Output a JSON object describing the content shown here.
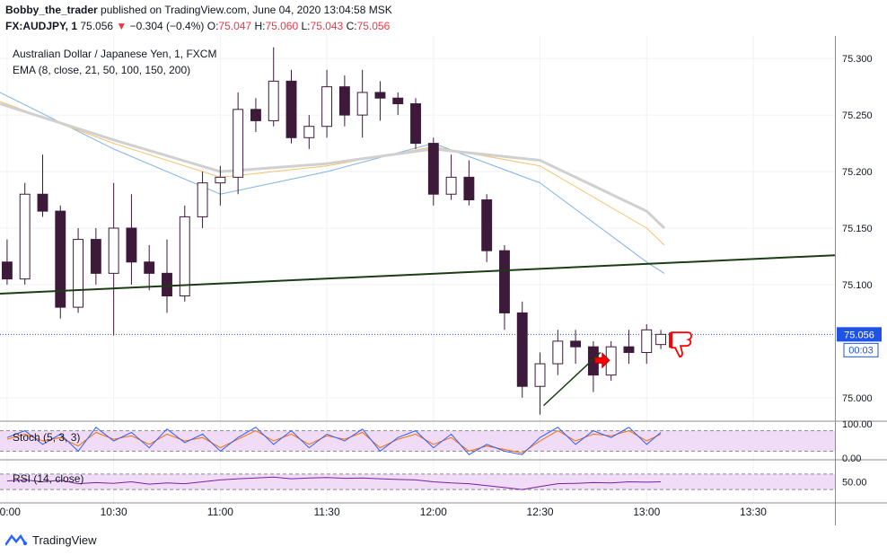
{
  "header": {
    "author": "Bobby_the_trader",
    "published_text": "published on TradingView.com, June 04, 2020 13:04:58 MSK",
    "symbol": "FX:AUDJPY, 1",
    "last": "75.056",
    "change_arrow": "▼",
    "change": "−0.304 (−0.4%)",
    "o_label": "O:",
    "o": "75.047",
    "h_label": "H:",
    "h": "75.060",
    "l_label": "L:",
    "l": "75.043",
    "c_label": "C:",
    "c": "75.056"
  },
  "legend": {
    "title": "Australian Dollar / Japanese Yen, 1, FXCM",
    "ema": "EMA (8, close, 21, 50, 100, 150, 200)",
    "stoch": "Stoch (5, 3, 3)",
    "rsi": "RSI (14, close)"
  },
  "price_axis": {
    "ticks": [
      "75.300",
      "75.250",
      "75.200",
      "75.150",
      "75.100",
      "75.000"
    ],
    "current_price": "75.056",
    "countdown": "00:03"
  },
  "stoch_axis": {
    "ticks": [
      "100.00",
      "0.00"
    ]
  },
  "rsi_axis": {
    "ticks": [
      "50.00"
    ]
  },
  "time_axis": {
    "ticks": [
      "10:00",
      "10:30",
      "11:00",
      "11:30",
      "12:00",
      "12:30",
      "13:00",
      "13:30"
    ]
  },
  "footer": {
    "brand": "TradingView"
  },
  "colors": {
    "up_candle": "#ffffff",
    "down_candle": "#3d1a3a",
    "wick": "#3d1a3a",
    "trendline": "#1b3d14",
    "ema_fast": "#7fb2e5",
    "ema_mid": "#f5c26b",
    "ema_slow": "#d0d0d0",
    "stoch_k": "#2962ff",
    "stoch_d": "#ff6d00",
    "stoch_band": "#f1dcf8",
    "rsi_line": "#7b1fa2",
    "price_label": "#1e53e5",
    "signal_arrow": "#ff0000",
    "thumbs_down": "#ff0000"
  },
  "icons": [
    "tradingview-logo-icon",
    "thumbs-down-icon",
    "arrow-right-icon"
  ],
  "chart_data": {
    "type": "candlestick",
    "symbol": "FX:AUDJPY",
    "timeframe": "1",
    "y_range": [
      74.98,
      75.32
    ],
    "x_range": [
      "09:58",
      "13:53"
    ],
    "candles": [
      {
        "t": "10:00",
        "o": 75.12,
        "h": 75.14,
        "l": 75.1,
        "c": 75.105
      },
      {
        "t": "10:05",
        "o": 75.105,
        "h": 75.19,
        "l": 75.1,
        "c": 75.18
      },
      {
        "t": "10:10",
        "o": 75.18,
        "h": 75.215,
        "l": 75.16,
        "c": 75.165
      },
      {
        "t": "10:15",
        "o": 75.165,
        "h": 75.17,
        "l": 75.07,
        "c": 75.08
      },
      {
        "t": "10:20",
        "o": 75.08,
        "h": 75.15,
        "l": 75.075,
        "c": 75.14
      },
      {
        "t": "10:25",
        "o": 75.14,
        "h": 75.15,
        "l": 75.1,
        "c": 75.11
      },
      {
        "t": "10:30",
        "o": 75.11,
        "h": 75.19,
        "l": 75.055,
        "c": 75.15
      },
      {
        "t": "10:35",
        "o": 75.15,
        "h": 75.18,
        "l": 75.1,
        "c": 75.12
      },
      {
        "t": "10:40",
        "o": 75.12,
        "h": 75.135,
        "l": 75.095,
        "c": 75.11
      },
      {
        "t": "10:45",
        "o": 75.11,
        "h": 75.14,
        "l": 75.075,
        "c": 75.09
      },
      {
        "t": "10:50",
        "o": 75.09,
        "h": 75.17,
        "l": 75.085,
        "c": 75.16
      },
      {
        "t": "10:55",
        "o": 75.16,
        "h": 75.2,
        "l": 75.15,
        "c": 75.19
      },
      {
        "t": "11:00",
        "o": 75.19,
        "h": 75.205,
        "l": 75.17,
        "c": 75.195
      },
      {
        "t": "11:05",
        "o": 75.195,
        "h": 75.27,
        "l": 75.18,
        "c": 75.255
      },
      {
        "t": "11:10",
        "o": 75.255,
        "h": 75.265,
        "l": 75.235,
        "c": 75.245
      },
      {
        "t": "11:15",
        "o": 75.245,
        "h": 75.31,
        "l": 75.24,
        "c": 75.28
      },
      {
        "t": "11:20",
        "o": 75.28,
        "h": 75.29,
        "l": 75.225,
        "c": 75.23
      },
      {
        "t": "11:25",
        "o": 75.23,
        "h": 75.25,
        "l": 75.22,
        "c": 75.24
      },
      {
        "t": "11:30",
        "o": 75.24,
        "h": 75.29,
        "l": 75.23,
        "c": 75.275
      },
      {
        "t": "11:35",
        "o": 75.275,
        "h": 75.285,
        "l": 75.24,
        "c": 75.25
      },
      {
        "t": "11:40",
        "o": 75.25,
        "h": 75.29,
        "l": 75.23,
        "c": 75.27
      },
      {
        "t": "11:45",
        "o": 75.27,
        "h": 75.28,
        "l": 75.245,
        "c": 75.265
      },
      {
        "t": "11:50",
        "o": 75.265,
        "h": 75.27,
        "l": 75.25,
        "c": 75.26
      },
      {
        "t": "11:55",
        "o": 75.26,
        "h": 75.265,
        "l": 75.22,
        "c": 75.225
      },
      {
        "t": "12:00",
        "o": 75.225,
        "h": 75.23,
        "l": 75.17,
        "c": 75.18
      },
      {
        "t": "12:05",
        "o": 75.18,
        "h": 75.215,
        "l": 75.175,
        "c": 75.195
      },
      {
        "t": "12:10",
        "o": 75.195,
        "h": 75.21,
        "l": 75.17,
        "c": 75.175
      },
      {
        "t": "12:15",
        "o": 75.175,
        "h": 75.18,
        "l": 75.12,
        "c": 75.13
      },
      {
        "t": "12:20",
        "o": 75.13,
        "h": 75.135,
        "l": 75.06,
        "c": 75.075
      },
      {
        "t": "12:25",
        "o": 75.075,
        "h": 75.085,
        "l": 75.0,
        "c": 75.01
      },
      {
        "t": "12:30",
        "o": 75.01,
        "h": 75.04,
        "l": 74.985,
        "c": 75.03
      },
      {
        "t": "12:35",
        "o": 75.03,
        "h": 75.06,
        "l": 75.02,
        "c": 75.05
      },
      {
        "t": "12:40",
        "o": 75.05,
        "h": 75.06,
        "l": 75.03,
        "c": 75.045
      },
      {
        "t": "12:45",
        "o": 75.045,
        "h": 75.05,
        "l": 75.005,
        "c": 75.02
      },
      {
        "t": "12:50",
        "o": 75.02,
        "h": 75.05,
        "l": 75.015,
        "c": 75.045
      },
      {
        "t": "12:55",
        "o": 75.045,
        "h": 75.06,
        "l": 75.03,
        "c": 75.04
      },
      {
        "t": "13:00",
        "o": 75.04,
        "h": 75.065,
        "l": 75.03,
        "c": 75.06
      },
      {
        "t": "13:04",
        "o": 75.047,
        "h": 75.06,
        "l": 75.043,
        "c": 75.056
      }
    ],
    "ema_series": [
      {
        "name": "EMA",
        "points": [
          [
            "09:58",
            75.27
          ],
          [
            "10:30",
            75.22
          ],
          [
            "11:00",
            75.18
          ],
          [
            "11:30",
            75.2
          ],
          [
            "12:00",
            75.225
          ],
          [
            "12:30",
            75.19
          ],
          [
            "13:00",
            75.12
          ],
          [
            "13:05",
            75.11
          ]
        ]
      },
      {
        "name": "EMA",
        "points": [
          [
            "09:58",
            75.262
          ],
          [
            "10:30",
            75.225
          ],
          [
            "11:00",
            75.195
          ],
          [
            "11:30",
            75.205
          ],
          [
            "12:00",
            75.222
          ],
          [
            "12:30",
            75.205
          ],
          [
            "13:00",
            75.15
          ],
          [
            "13:05",
            75.135
          ]
        ]
      },
      {
        "name": "EMA",
        "points": [
          [
            "09:58",
            75.26
          ],
          [
            "10:30",
            75.228
          ],
          [
            "11:00",
            75.2
          ],
          [
            "11:30",
            75.207
          ],
          [
            "12:00",
            75.22
          ],
          [
            "12:30",
            75.21
          ],
          [
            "13:00",
            75.165
          ],
          [
            "13:05",
            75.15
          ]
        ]
      }
    ],
    "trendlines": [
      {
        "from": [
          "09:58",
          75.092
        ],
        "to": [
          "13:53",
          75.126
        ]
      },
      {
        "from": [
          "12:31",
          74.993
        ],
        "to": [
          "12:47",
          75.04
        ]
      }
    ],
    "stochastic": {
      "name": "Stoch (5, 3, 3)",
      "k": [
        60,
        80,
        40,
        70,
        20,
        90,
        50,
        75,
        30,
        85,
        45,
        70,
        20,
        60,
        90,
        40,
        80,
        30,
        70,
        50,
        85,
        20,
        60,
        80,
        30,
        70,
        10,
        40,
        20,
        10,
        60,
        90,
        40,
        80,
        60,
        90,
        40,
        75
      ],
      "d": [
        55,
        70,
        50,
        60,
        35,
        75,
        55,
        65,
        40,
        70,
        50,
        60,
        30,
        55,
        80,
        50,
        70,
        40,
        65,
        55,
        75,
        30,
        55,
        70,
        40,
        60,
        20,
        35,
        25,
        15,
        50,
        80,
        50,
        70,
        65,
        80,
        50,
        70
      ],
      "band": [
        20,
        80
      ]
    },
    "rsi": {
      "name": "RSI (14, close)",
      "values": [
        52,
        55,
        50,
        54,
        45,
        48,
        46,
        50,
        44,
        47,
        45,
        50,
        55,
        58,
        60,
        62,
        58,
        60,
        61,
        59,
        60,
        58,
        56,
        55,
        50,
        47,
        45,
        40,
        35,
        30,
        38,
        45,
        46,
        48,
        47,
        50,
        49,
        50
      ],
      "band": [
        30,
        70
      ]
    }
  }
}
